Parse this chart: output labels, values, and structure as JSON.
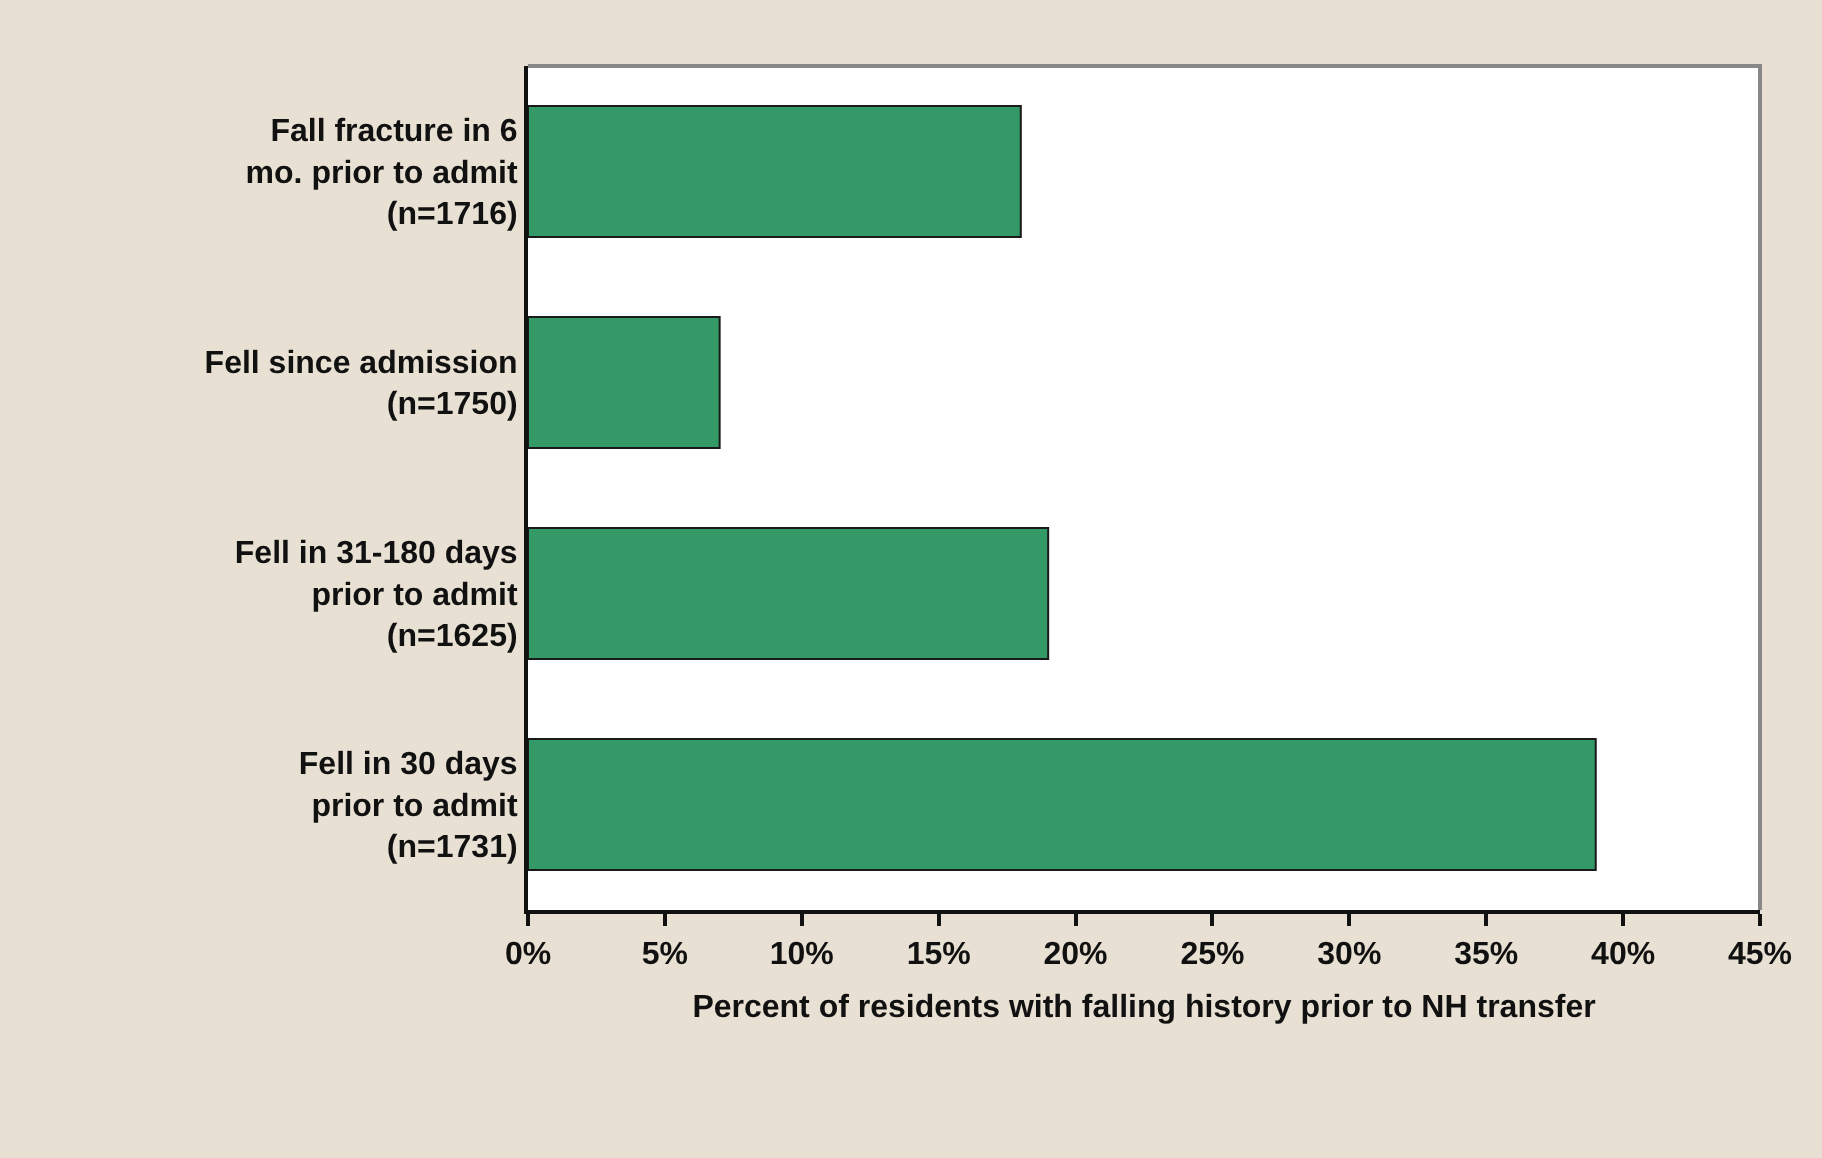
{
  "chart_data": {
    "type": "bar",
    "orientation": "horizontal",
    "xlabel": "Percent of residents with falling history prior to NH transfer",
    "categories": [
      "Fall fracture in 6 mo. prior to admit (n=1716)",
      "Fell since admission (n=1750)",
      "Fell in 31-180 days prior to admit (n=1625)",
      "Fell in 30 days prior to admit (n=1731)"
    ],
    "values": [
      18,
      7,
      19,
      39
    ],
    "color": "#339966",
    "xlim": [
      0,
      45
    ],
    "xticks": [
      {
        "value": 0,
        "label": "0%"
      },
      {
        "value": 5,
        "label": "5%"
      },
      {
        "value": 10,
        "label": "10%"
      },
      {
        "value": 15,
        "label": "15%"
      },
      {
        "value": 20,
        "label": "20%"
      },
      {
        "value": 25,
        "label": "25%"
      },
      {
        "value": 30,
        "label": "30%"
      },
      {
        "value": 35,
        "label": "35%"
      },
      {
        "value": 40,
        "label": "40%"
      },
      {
        "value": 45,
        "label": "45%"
      }
    ],
    "grid": false
  }
}
